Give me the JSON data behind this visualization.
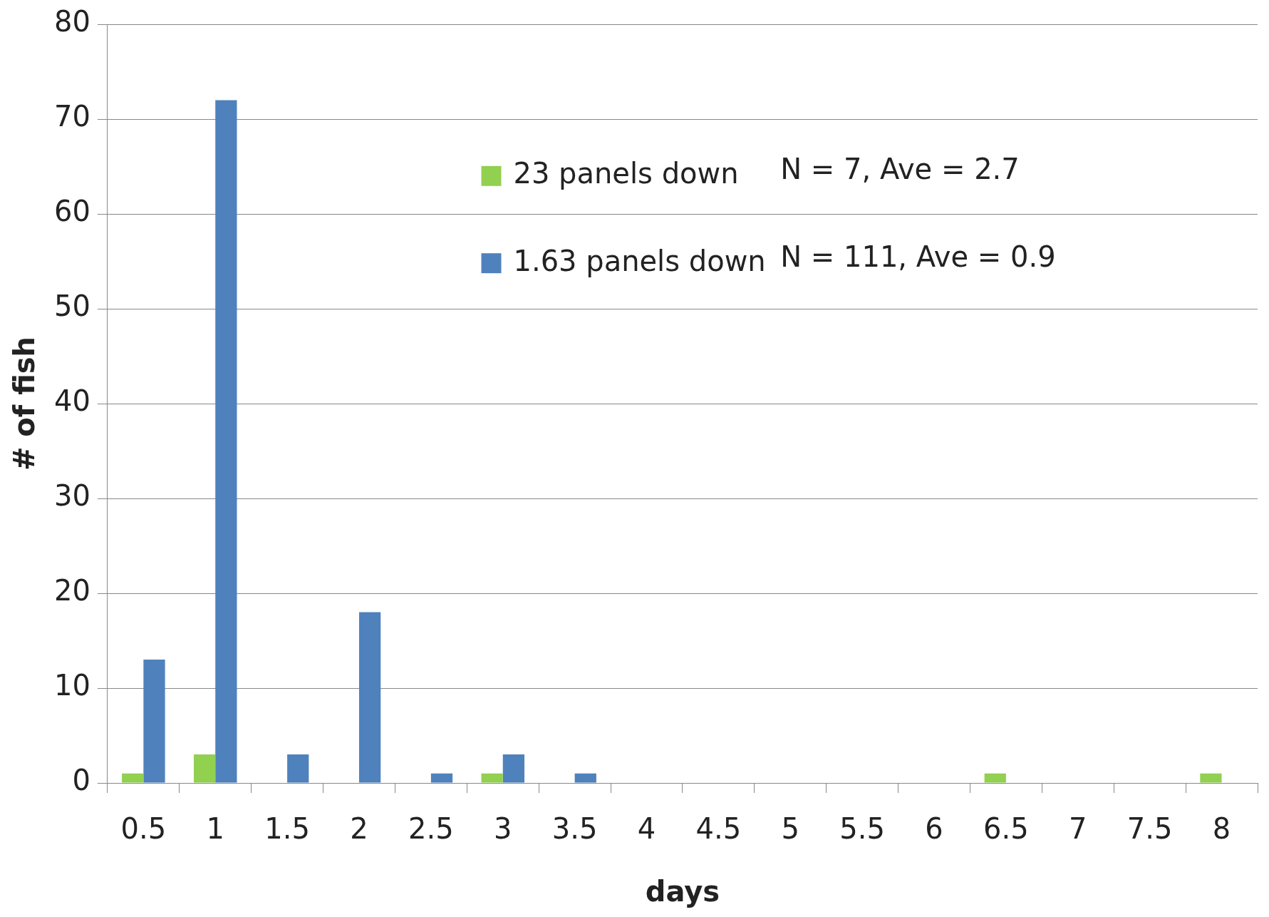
{
  "chart_data": {
    "type": "bar",
    "xlabel": "days",
    "ylabel": "# of fish",
    "categories": [
      "0.5",
      "1",
      "1.5",
      "2",
      "2.5",
      "3",
      "3.5",
      "4",
      "4.5",
      "5",
      "5.5",
      "6",
      "6.5",
      "7",
      "7.5",
      "8"
    ],
    "series": [
      {
        "name": "23 panels down",
        "color": "#92d050",
        "values": [
          1,
          3,
          0,
          0,
          0,
          1,
          0,
          0,
          0,
          0,
          0,
          0,
          1,
          0,
          0,
          1
        ]
      },
      {
        "name": "1.63 panels down",
        "color": "#4f81bd",
        "values": [
          13,
          72,
          3,
          18,
          1,
          3,
          1,
          0,
          0,
          0,
          0,
          0,
          0,
          0,
          0,
          0
        ]
      }
    ],
    "ylim": [
      0,
      80
    ],
    "yticks": [
      0,
      10,
      20,
      30,
      40,
      50,
      60,
      70,
      80
    ],
    "grid": "y",
    "legend": "top",
    "annotations": [
      "N = 7, Ave = 2.7",
      "N = 111, Ave = 0.9"
    ]
  }
}
